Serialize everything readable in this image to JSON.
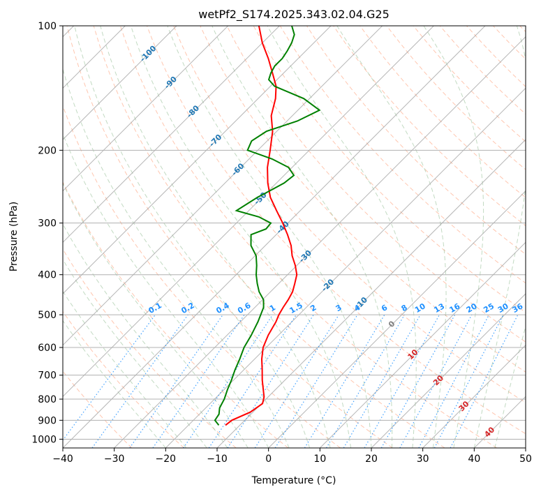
{
  "chart_data": {
    "type": "line",
    "title": "wetPf2_S174.2025.343.02.04.G25",
    "xlabel": "Temperature (°C)",
    "ylabel": "Pressure (hPa)",
    "xlim": [
      -40,
      50
    ],
    "ylim": [
      1050,
      100
    ],
    "y_scale": "log",
    "grid": true,
    "x_ticks": [
      -40,
      -30,
      -20,
      -10,
      0,
      10,
      20,
      30,
      40,
      50
    ],
    "x_tick_labels": [
      "−40",
      "−30",
      "−20",
      "−10",
      "0",
      "10",
      "20",
      "30",
      "40",
      "50"
    ],
    "y_ticks": [
      100,
      200,
      300,
      400,
      500,
      600,
      700,
      800,
      900,
      1000
    ],
    "y_tick_labels": [
      "100",
      "200",
      "300",
      "400",
      "500",
      "600",
      "700",
      "800",
      "900",
      "1000"
    ],
    "colors": {
      "temperature": "#ff0000",
      "dewpoint": "#008000",
      "isotherm_label": "#1f77b4",
      "warm_isotherm_label": "#d62728",
      "zero_isotherm_label": "#808080",
      "mixing_ratio": "#1e90ff",
      "dry_adiabat": "#ffa07a",
      "moist_adiabat": "#8fbc8f",
      "skew_grid": "#9e9e9e"
    },
    "series": [
      {
        "key": "temperature",
        "pressure": [
          925,
          900,
          860,
          820,
          790,
          760,
          720,
          680,
          640,
          600,
          560,
          520,
          500,
          480,
          460,
          440,
          420,
          400,
          380,
          360,
          340,
          320,
          300,
          280,
          260,
          240,
          220,
          200,
          180,
          165,
          150,
          140,
          130,
          120,
          110,
          100
        ],
        "values": [
          -12.8,
          -12.5,
          -10.5,
          -9.8,
          -10.8,
          -12.3,
          -14.4,
          -16.4,
          -18.6,
          -20.6,
          -22.0,
          -23.1,
          -23.9,
          -24.5,
          -25.0,
          -25.7,
          -26.9,
          -28.2,
          -30.3,
          -32.8,
          -35.0,
          -37.8,
          -41.0,
          -44.6,
          -48.4,
          -51.7,
          -54.8,
          -57.6,
          -60.8,
          -64.1,
          -66.6,
          -68.9,
          -72.2,
          -75.8,
          -80.0,
          -84.0
        ]
      },
      {
        "key": "dewpoint",
        "pressure": [
          925,
          900,
          870,
          840,
          800,
          760,
          720,
          680,
          640,
          600,
          560,
          520,
          480,
          460,
          440,
          420,
          400,
          380,
          360,
          340,
          320,
          310,
          300,
          290,
          280,
          270,
          260,
          250,
          240,
          230,
          220,
          210,
          200,
          190,
          180,
          170,
          160,
          150,
          140,
          135,
          130,
          125,
          120,
          115,
          110,
          105,
          100
        ],
        "values": [
          -14.1,
          -15.8,
          -16.2,
          -17.3,
          -18.1,
          -19.3,
          -20.4,
          -21.7,
          -22.9,
          -24.3,
          -25.3,
          -26.6,
          -28.3,
          -29.8,
          -32.2,
          -34.2,
          -36.1,
          -37.8,
          -39.8,
          -42.8,
          -44.9,
          -43.1,
          -43.3,
          -46.8,
          -52.4,
          -51.7,
          -50.9,
          -49.7,
          -48.5,
          -48.1,
          -50.7,
          -55.5,
          -62.0,
          -63.0,
          -62.0,
          -58.0,
          -55.8,
          -61.1,
          -69.2,
          -71.6,
          -72.5,
          -73.1,
          -73.1,
          -73.6,
          -74.3,
          -75.4,
          -77.6
        ]
      }
    ],
    "isotherm_labels": {
      "cold": [
        "-100",
        "-90",
        "-80",
        "-70",
        "-60",
        "-50",
        "-40",
        "-30",
        "-20",
        "-10"
      ],
      "zero": "0",
      "warm": [
        "10",
        "20",
        "30",
        "40"
      ]
    },
    "mixing_ratio_labels": [
      "0.1",
      "0.2",
      "0.4",
      "0.6",
      "1",
      "1.5",
      "2",
      "3",
      "4",
      "6",
      "8",
      "10",
      "13",
      "16",
      "20",
      "25",
      "30",
      "36"
    ]
  }
}
